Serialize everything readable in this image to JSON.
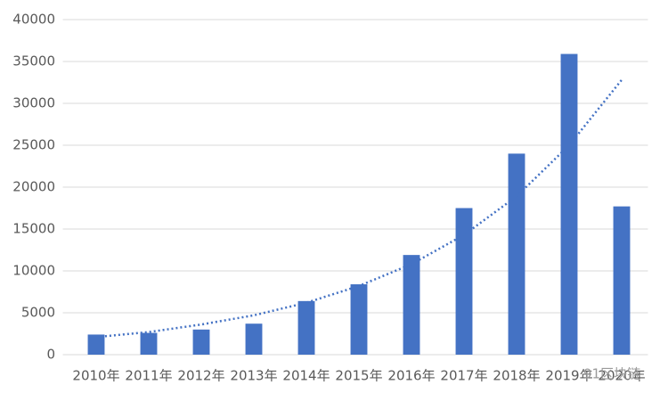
{
  "chart_data": {
    "type": "bar",
    "categories": [
      "2010年",
      "2011年",
      "2012年",
      "2013年",
      "2014年",
      "2015年",
      "2016年",
      "2017年",
      "2018年",
      "2019年",
      "2020年"
    ],
    "values": [
      2400,
      2600,
      3000,
      3700,
      6400,
      8400,
      11900,
      17500,
      24000,
      35900,
      17700
    ],
    "color": "#4472c4",
    "trendline": {
      "values": [
        2100,
        2700,
        3600,
        4700,
        6200,
        8200,
        10800,
        14300,
        18900,
        25000,
        32800
      ],
      "color": "#4472c4",
      "style": "dotted"
    },
    "ylim": [
      0,
      40000
    ],
    "yticks": [
      0,
      5000,
      10000,
      15000,
      20000,
      25000,
      30000,
      35000,
      40000
    ],
    "grid": true,
    "watermark": "91区块链"
  }
}
